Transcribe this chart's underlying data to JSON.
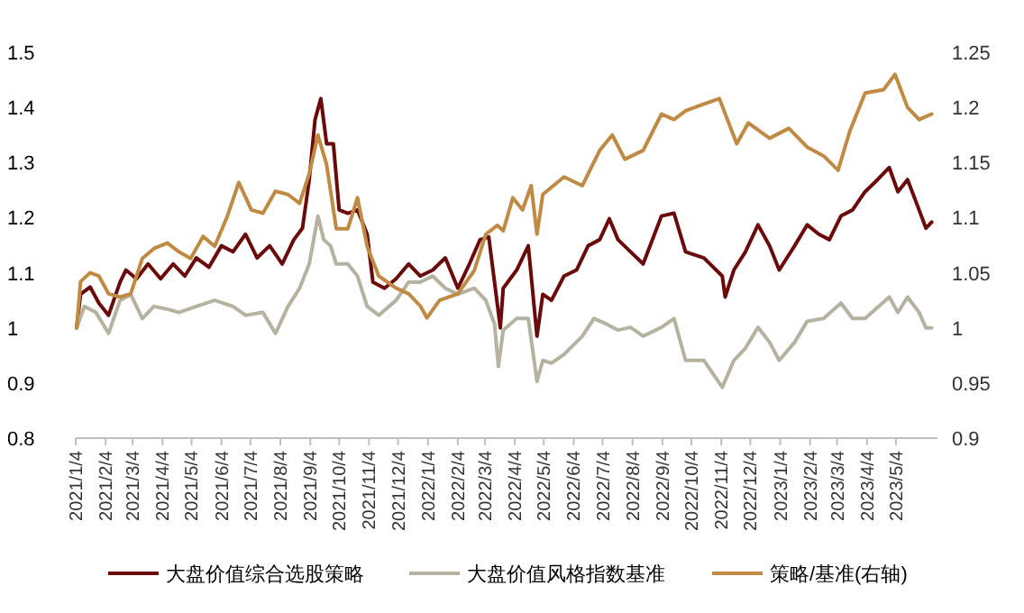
{
  "chart_data": {
    "type": "line",
    "legend": "bottom",
    "grid": false,
    "marker": "none",
    "line_style": "solid",
    "xlim": [
      "2021-01-04",
      "2023-06-16"
    ],
    "xticks": [
      {
        "value": "2021-01-04",
        "label": "2021/1/4"
      },
      {
        "value": "2021-02-04",
        "label": "2021/2/4"
      },
      {
        "value": "2021-03-04",
        "label": "2021/3/4"
      },
      {
        "value": "2021-04-04",
        "label": "2021/4/4"
      },
      {
        "value": "2021-05-04",
        "label": "2021/5/4"
      },
      {
        "value": "2021-06-04",
        "label": "2021/6/4"
      },
      {
        "value": "2021-07-04",
        "label": "2021/7/4"
      },
      {
        "value": "2021-08-04",
        "label": "2021/8/4"
      },
      {
        "value": "2021-09-04",
        "label": "2021/9/4"
      },
      {
        "value": "2021-10-04",
        "label": "2021/10/4"
      },
      {
        "value": "2021-11-04",
        "label": "2021/11/4"
      },
      {
        "value": "2021-12-04",
        "label": "2021/12/4"
      },
      {
        "value": "2022-01-04",
        "label": "2022/1/4"
      },
      {
        "value": "2022-02-04",
        "label": "2022/2/4"
      },
      {
        "value": "2022-03-04",
        "label": "2022/3/4"
      },
      {
        "value": "2022-04-04",
        "label": "2022/4/4"
      },
      {
        "value": "2022-05-04",
        "label": "2022/5/4"
      },
      {
        "value": "2022-06-04",
        "label": "2022/6/4"
      },
      {
        "value": "2022-07-04",
        "label": "2022/7/4"
      },
      {
        "value": "2022-08-04",
        "label": "2022/8/4"
      },
      {
        "value": "2022-09-04",
        "label": "2022/9/4"
      },
      {
        "value": "2022-10-04",
        "label": "2022/10/4"
      },
      {
        "value": "2022-11-04",
        "label": "2022/11/4"
      },
      {
        "value": "2022-12-04",
        "label": "2022/12/4"
      },
      {
        "value": "2023-01-04",
        "label": "2023/1/4"
      },
      {
        "value": "2023-02-04",
        "label": "2023/2/4"
      },
      {
        "value": "2023-03-04",
        "label": "2023/3/4"
      },
      {
        "value": "2023-04-04",
        "label": "2023/4/4"
      },
      {
        "value": "2023-05-04",
        "label": "2023/5/4"
      }
    ],
    "ylim": [
      0.8,
      1.5
    ],
    "yticks": [
      0.8,
      0.9,
      1,
      1.1,
      1.2,
      1.3,
      1.4,
      1.5
    ],
    "y2lim": [
      0.9,
      1.25
    ],
    "y2ticks": [
      0.9,
      0.95,
      1,
      1.05,
      1.1,
      1.15,
      1.2,
      1.25
    ],
    "series": [
      {
        "name": "大盘价值综合选股策略",
        "color": "#6b0a0a",
        "x": [
          "2021-01-05",
          "2021-01-09",
          "2021-01-19",
          "2021-01-28",
          "2021-02-07",
          "2021-02-19",
          "2021-02-25",
          "2021-03-08",
          "2021-03-20",
          "2021-04-02",
          "2021-04-15",
          "2021-04-27",
          "2021-05-09",
          "2021-05-22",
          "2021-06-04",
          "2021-06-16",
          "2021-06-29",
          "2021-07-11",
          "2021-07-24",
          "2021-08-06",
          "2021-08-18",
          "2021-08-27",
          "2021-09-03",
          "2021-09-09",
          "2021-09-15",
          "2021-09-21",
          "2021-09-28",
          "2021-10-04",
          "2021-10-13",
          "2021-10-23",
          "2021-11-02",
          "2021-11-08",
          "2021-11-20",
          "2021-12-02",
          "2021-12-15",
          "2021-12-27",
          "2022-01-09",
          "2022-01-22",
          "2022-02-04",
          "2022-02-16",
          "2022-02-27",
          "2022-03-08",
          "2022-03-14",
          "2022-03-20",
          "2022-03-23",
          "2022-04-06",
          "2022-04-18",
          "2022-04-27",
          "2022-05-03",
          "2022-05-12",
          "2022-05-25",
          "2022-06-07",
          "2022-06-19",
          "2022-07-01",
          "2022-07-11",
          "2022-07-20",
          "2022-08-02",
          "2022-08-15",
          "2022-09-03",
          "2022-09-16",
          "2022-09-28",
          "2022-10-17",
          "2022-11-05",
          "2022-11-08",
          "2022-11-17",
          "2022-11-29",
          "2022-12-12",
          "2022-12-24",
          "2023-01-03",
          "2023-01-19",
          "2023-02-01",
          "2023-02-13",
          "2023-02-24",
          "2023-03-08",
          "2023-03-20",
          "2023-04-02",
          "2023-04-15",
          "2023-04-27",
          "2023-05-06",
          "2023-05-16",
          "2023-05-28",
          "2023-06-04",
          "2023-06-10"
        ],
        "values": [
          1.0,
          1.061,
          1.074,
          1.045,
          1.023,
          1.083,
          1.105,
          1.089,
          1.116,
          1.089,
          1.116,
          1.094,
          1.127,
          1.11,
          1.149,
          1.138,
          1.17,
          1.127,
          1.149,
          1.116,
          1.16,
          1.181,
          1.269,
          1.378,
          1.416,
          1.334,
          1.334,
          1.214,
          1.208,
          1.214,
          1.17,
          1.083,
          1.072,
          1.089,
          1.116,
          1.094,
          1.105,
          1.127,
          1.072,
          1.116,
          1.16,
          1.165,
          1.083,
          1.0,
          1.072,
          1.105,
          1.149,
          0.985,
          1.061,
          1.05,
          1.094,
          1.105,
          1.149,
          1.16,
          1.198,
          1.16,
          1.138,
          1.116,
          1.203,
          1.208,
          1.138,
          1.127,
          1.094,
          1.056,
          1.105,
          1.138,
          1.187,
          1.149,
          1.105,
          1.149,
          1.187,
          1.17,
          1.16,
          1.203,
          1.214,
          1.247,
          1.269,
          1.291,
          1.247,
          1.269,
          1.214,
          1.181,
          1.192
        ]
      },
      {
        "name": "大盘价值风格指数基准",
        "color": "#b5b3a0",
        "x": [
          "2021-01-05",
          "2021-01-13",
          "2021-01-25",
          "2021-02-07",
          "2021-02-19",
          "2021-03-02",
          "2021-03-14",
          "2021-03-26",
          "2021-04-09",
          "2021-04-21",
          "2021-05-09",
          "2021-05-28",
          "2021-06-16",
          "2021-06-29",
          "2021-07-17",
          "2021-07-30",
          "2021-08-12",
          "2021-08-24",
          "2021-09-03",
          "2021-09-12",
          "2021-09-18",
          "2021-09-25",
          "2021-10-01",
          "2021-10-13",
          "2021-10-23",
          "2021-11-02",
          "2021-11-14",
          "2021-12-02",
          "2021-12-15",
          "2021-12-27",
          "2022-01-09",
          "2022-01-22",
          "2022-02-04",
          "2022-02-21",
          "2022-03-05",
          "2022-03-14",
          "2022-03-18",
          "2022-03-23",
          "2022-04-06",
          "2022-04-18",
          "2022-04-27",
          "2022-05-03",
          "2022-05-12",
          "2022-05-25",
          "2022-06-13",
          "2022-06-25",
          "2022-07-08",
          "2022-07-20",
          "2022-08-02",
          "2022-08-15",
          "2022-09-03",
          "2022-09-16",
          "2022-09-28",
          "2022-10-17",
          "2022-11-05",
          "2022-11-17",
          "2022-11-29",
          "2022-12-12",
          "2022-12-24",
          "2023-01-03",
          "2023-01-19",
          "2023-02-01",
          "2023-02-18",
          "2023-03-08",
          "2023-03-20",
          "2023-04-02",
          "2023-04-27",
          "2023-05-06",
          "2023-05-16",
          "2023-05-28",
          "2023-06-04",
          "2023-06-10"
        ],
        "values": [
          1.0,
          1.039,
          1.028,
          0.99,
          1.05,
          1.061,
          1.017,
          1.039,
          1.034,
          1.028,
          1.039,
          1.05,
          1.039,
          1.023,
          1.028,
          0.99,
          1.039,
          1.072,
          1.116,
          1.203,
          1.16,
          1.149,
          1.116,
          1.116,
          1.094,
          1.039,
          1.023,
          1.05,
          1.083,
          1.083,
          1.094,
          1.072,
          1.061,
          1.072,
          1.05,
          1.007,
          0.93,
          0.996,
          1.017,
          1.017,
          0.903,
          0.941,
          0.936,
          0.952,
          0.985,
          1.017,
          1.007,
          0.996,
          1.001,
          0.985,
          1.001,
          1.017,
          0.941,
          0.941,
          0.892,
          0.941,
          0.963,
          1.001,
          0.974,
          0.941,
          0.974,
          1.012,
          1.017,
          1.045,
          1.017,
          1.017,
          1.056,
          1.028,
          1.056,
          1.028,
          1.0,
          1.0
        ]
      },
      {
        "name": "策略/基准(右轴)",
        "color": "#c08a43",
        "axis": "y2",
        "x": [
          "2021-01-05",
          "2021-01-09",
          "2021-01-19",
          "2021-01-28",
          "2021-02-07",
          "2021-02-19",
          "2021-03-02",
          "2021-03-14",
          "2021-03-26",
          "2021-04-09",
          "2021-04-21",
          "2021-05-03",
          "2021-05-16",
          "2021-05-28",
          "2021-06-10",
          "2021-06-22",
          "2021-07-05",
          "2021-07-17",
          "2021-07-30",
          "2021-08-12",
          "2021-08-24",
          "2021-09-03",
          "2021-09-12",
          "2021-09-21",
          "2021-10-01",
          "2021-10-13",
          "2021-10-23",
          "2021-11-02",
          "2021-11-14",
          "2021-12-02",
          "2021-12-15",
          "2021-12-27",
          "2022-01-03",
          "2022-01-16",
          "2022-02-04",
          "2022-02-21",
          "2022-03-05",
          "2022-03-17",
          "2022-03-23",
          "2022-04-02",
          "2022-04-12",
          "2022-04-21",
          "2022-04-27",
          "2022-05-03",
          "2022-05-25",
          "2022-06-13",
          "2022-07-01",
          "2022-07-14",
          "2022-07-27",
          "2022-08-15",
          "2022-09-03",
          "2022-09-16",
          "2022-09-28",
          "2022-10-17",
          "2022-11-02",
          "2022-11-20",
          "2022-12-02",
          "2022-12-24",
          "2023-01-13",
          "2023-02-01",
          "2023-02-18",
          "2023-03-05",
          "2023-03-17",
          "2023-04-02",
          "2023-04-21",
          "2023-05-03",
          "2023-05-16",
          "2023-05-28",
          "2023-06-10"
        ],
        "values": [
          1.0,
          1.042,
          1.05,
          1.047,
          1.031,
          1.028,
          1.031,
          1.063,
          1.072,
          1.077,
          1.069,
          1.063,
          1.083,
          1.074,
          1.101,
          1.132,
          1.107,
          1.104,
          1.124,
          1.121,
          1.113,
          1.14,
          1.175,
          1.148,
          1.09,
          1.09,
          1.118,
          1.074,
          1.047,
          1.036,
          1.031,
          1.02,
          1.009,
          1.025,
          1.031,
          1.052,
          1.085,
          1.093,
          1.088,
          1.118,
          1.107,
          1.129,
          1.085,
          1.121,
          1.137,
          1.129,
          1.161,
          1.175,
          1.153,
          1.161,
          1.194,
          1.189,
          1.197,
          1.203,
          1.208,
          1.167,
          1.186,
          1.172,
          1.181,
          1.164,
          1.156,
          1.143,
          1.178,
          1.213,
          1.216,
          1.23,
          1.2,
          1.189,
          1.194
        ]
      }
    ]
  }
}
